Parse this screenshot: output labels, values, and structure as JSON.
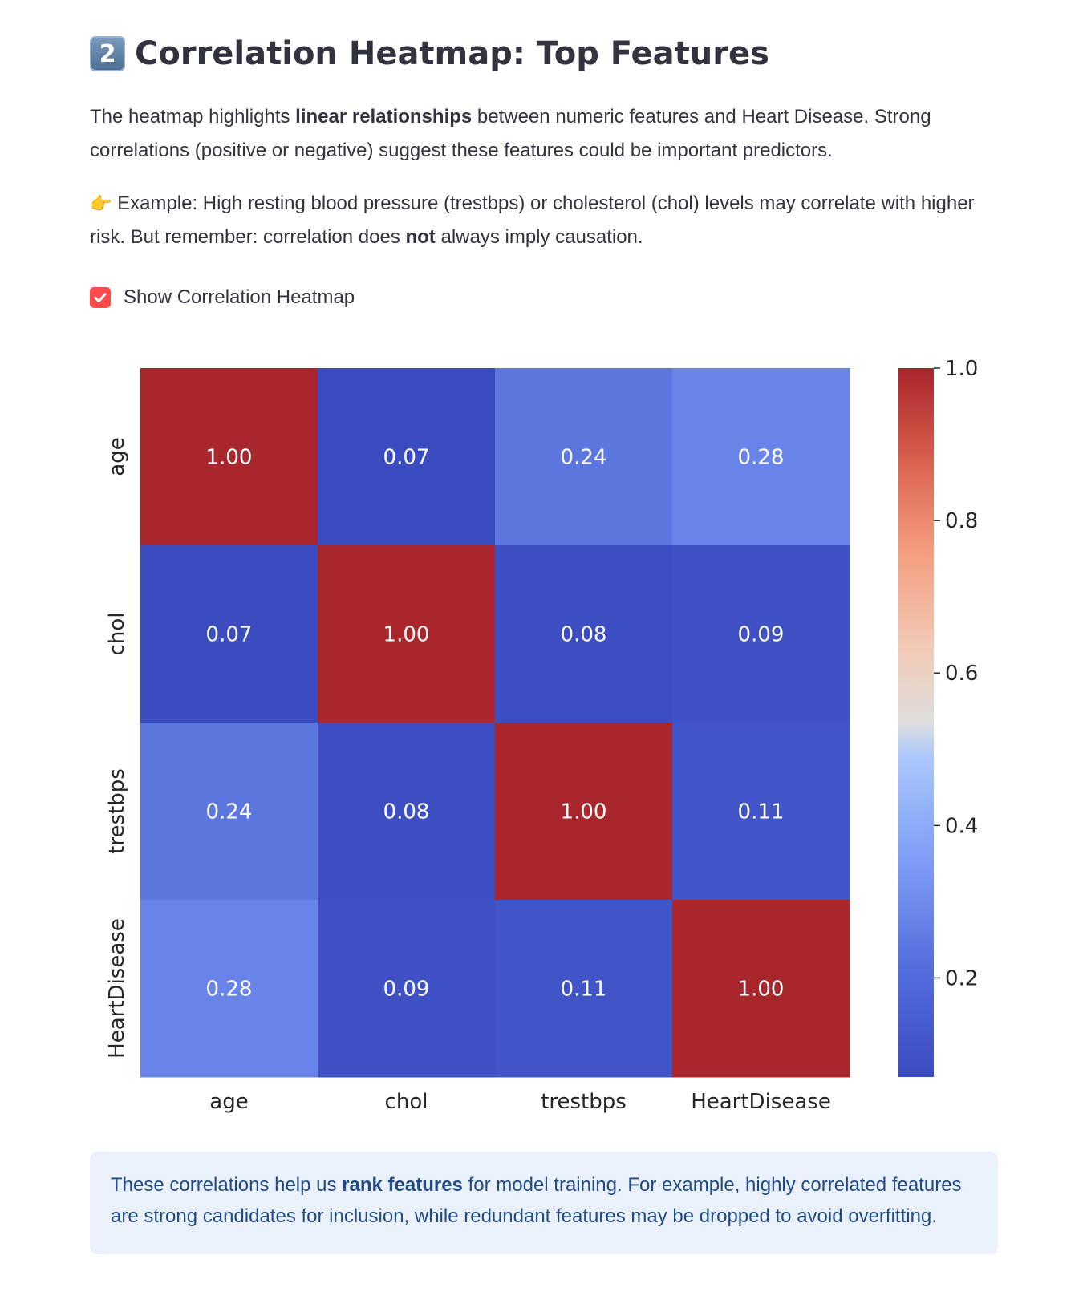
{
  "header": {
    "badge": "2",
    "title": "Correlation Heatmap: Top Features"
  },
  "intro": {
    "pre": "The heatmap highlights ",
    "bold": "linear relationships",
    "post": " between numeric features and Heart Disease. Strong correlations (positive or negative) suggest these features could be important predictors."
  },
  "example": {
    "icon": "👉",
    "pre": "Example: High resting blood pressure (trestbps) or cholesterol (chol) levels may correlate with higher risk. But remember: correlation does ",
    "bold": "not",
    "post": " always imply causation."
  },
  "checkbox": {
    "label": "Show Correlation Heatmap",
    "checked": true,
    "color": "#ff4b4b"
  },
  "chart_data": {
    "type": "heatmap",
    "x_labels": [
      "age",
      "chol",
      "trestbps",
      "HeartDisease"
    ],
    "y_labels": [
      "age",
      "chol",
      "trestbps",
      "HeartDisease"
    ],
    "matrix": [
      [
        1.0,
        0.07,
        0.24,
        0.28
      ],
      [
        0.07,
        1.0,
        0.08,
        0.09
      ],
      [
        0.24,
        0.08,
        1.0,
        0.11
      ],
      [
        0.28,
        0.09,
        0.11,
        1.0
      ]
    ],
    "cell_labels": [
      [
        "1.00",
        "0.07",
        "0.24",
        "0.28"
      ],
      [
        "0.07",
        "1.00",
        "0.08",
        "0.09"
      ],
      [
        "0.24",
        "0.08",
        "1.00",
        "0.11"
      ],
      [
        "0.28",
        "0.09",
        "0.11",
        "1.00"
      ]
    ],
    "colormap": "coolwarm",
    "vmin": 0.07,
    "vmax": 1.0,
    "colorbar_ticks": [
      0.2,
      0.4,
      0.6,
      0.8,
      1.0
    ],
    "colorbar_tick_labels": [
      "0.2",
      "0.4",
      "0.6",
      "0.8",
      "1.0"
    ]
  },
  "info": {
    "pre": "These correlations help us ",
    "bold": "rank features",
    "post": " for model training. For example, highly correlated features are strong candidates for inclusion, while redundant features may be dropped to avoid overfitting."
  }
}
